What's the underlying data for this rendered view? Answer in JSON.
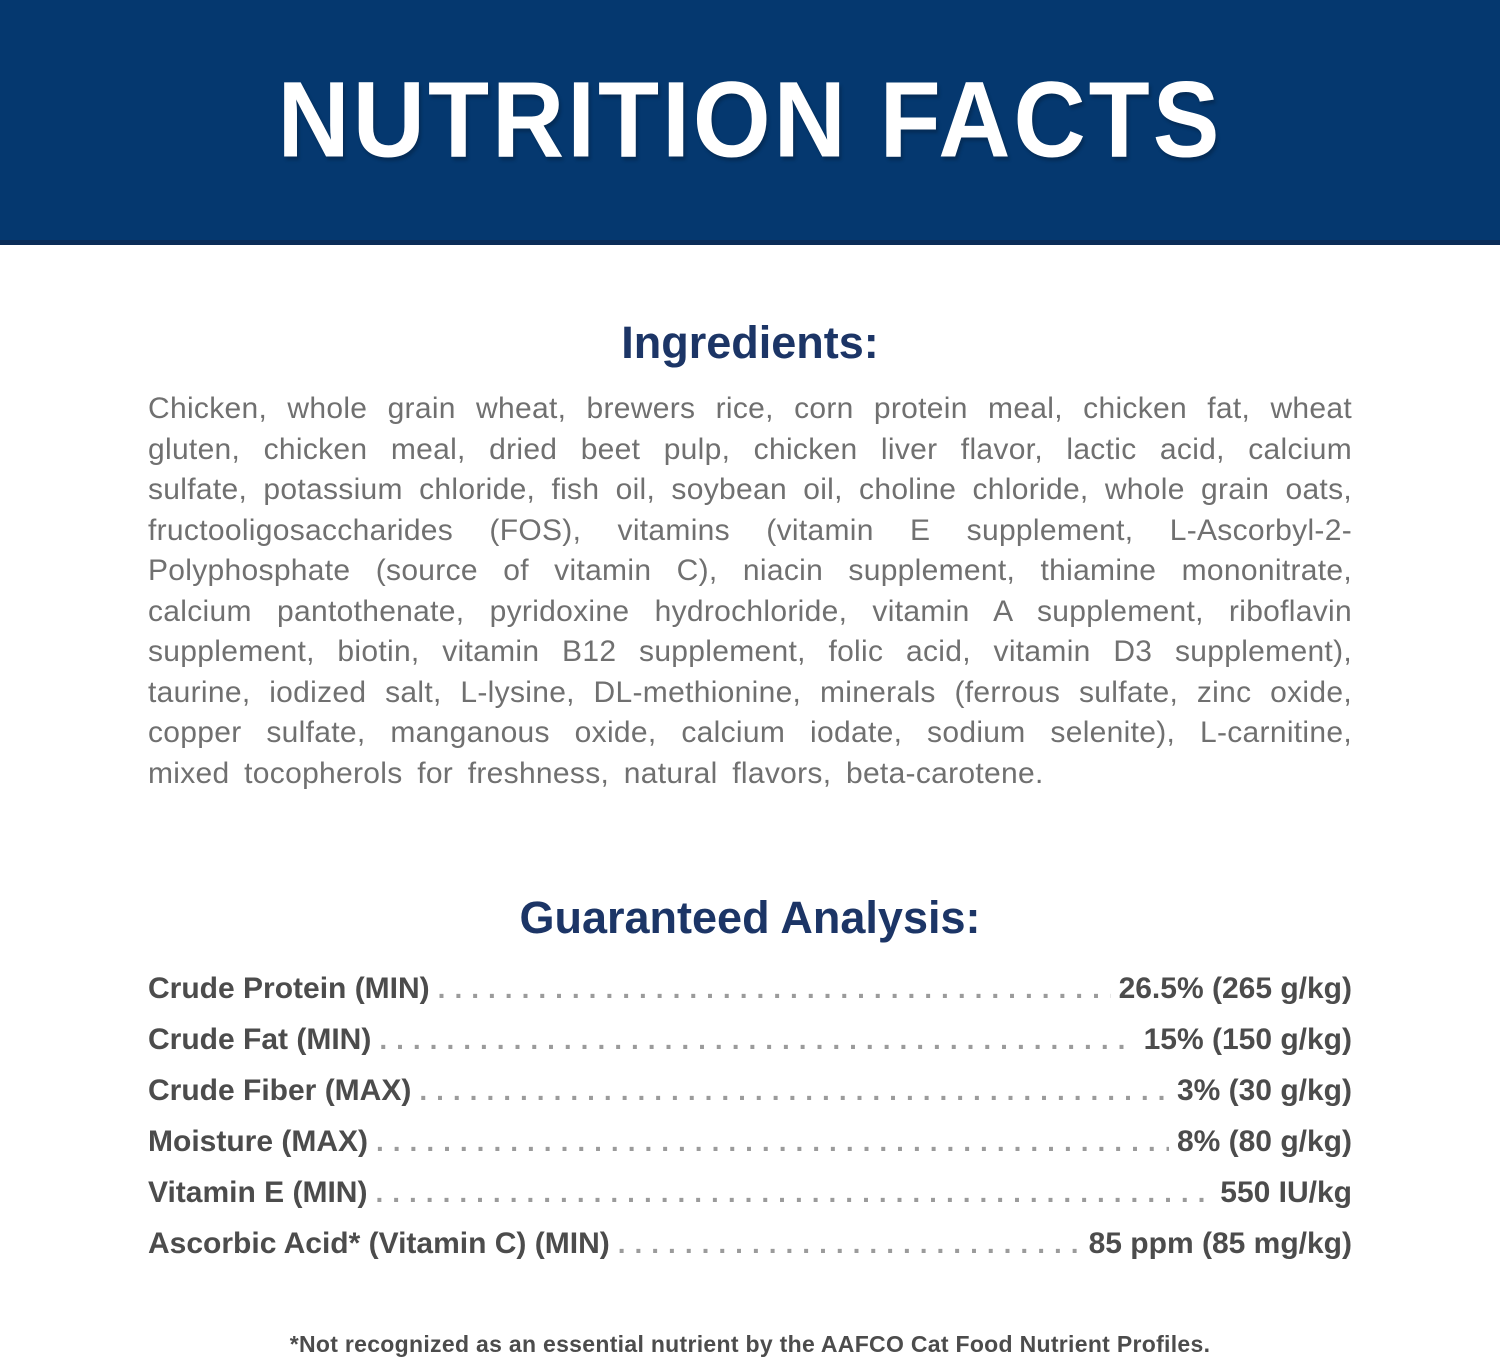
{
  "banner": {
    "title": "NUTRITION FACTS"
  },
  "ingredients": {
    "heading": "Ingredients:",
    "text": "Chicken, whole grain wheat, brewers rice, corn protein meal, chicken fat, wheat gluten, chicken meal, dried beet pulp, chicken liver flavor, lactic acid, calcium sulfate, potassium chloride, fish oil, soybean oil, choline chloride, whole grain oats, fructooligosaccharides (FOS), vitamins (vitamin E supplement, L-Ascorbyl-2-Polyphosphate (source of vitamin C), niacin supplement, thiamine mononitrate, calcium pantothenate, pyridoxine hydrochloride, vitamin A supplement, riboflavin supplement, biotin, vitamin B12 supplement, folic acid, vitamin D3 supplement), taurine, iodized salt, L-lysine, DL-methionine, minerals (ferrous sulfate, zinc oxide, copper sulfate, manganous oxide, calcium iodate, sodium selenite), L-carnitine, mixed tocopherols for freshness, natural flavors, beta-carotene."
  },
  "guaranteed_analysis": {
    "heading": "Guaranteed Analysis:",
    "rows": [
      {
        "label": "Crude Protein (MIN)",
        "value": "26.5% (265 g/kg)"
      },
      {
        "label": "Crude Fat (MIN)",
        "value": "15% (150 g/kg)"
      },
      {
        "label": "Crude Fiber (MAX)",
        "value": "3% (30 g/kg)"
      },
      {
        "label": "Moisture (MAX)",
        "value": "8% (80 g/kg)"
      },
      {
        "label": "Vitamin E (MIN)",
        "value": "550 IU/kg"
      },
      {
        "label": "Ascorbic Acid* (Vitamin C) (MIN)",
        "value": "85 ppm (85 mg/kg)"
      }
    ]
  },
  "footnote": "*Not recognized as an essential nutrient by the AAFCO Cat Food Nutrient Profiles.",
  "colors": {
    "banner_bg": "#05386f",
    "banner_edge": "#0a2c57",
    "banner_text": "#ffffff",
    "heading": "#1c3566",
    "body_text": "#707070",
    "analysis_text": "#4c4c4c",
    "dot_leader": "#9b9b9b"
  }
}
